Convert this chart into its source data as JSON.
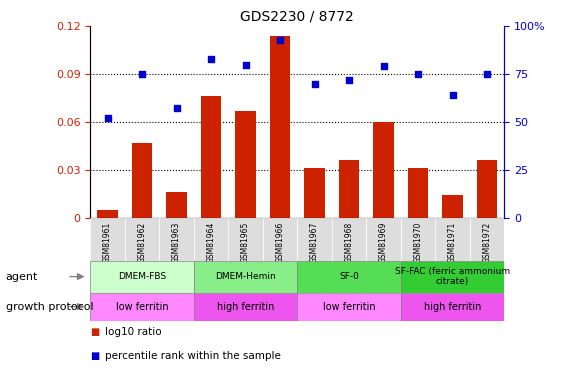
{
  "title": "GDS2230 / 8772",
  "samples": [
    "GSM81961",
    "GSM81962",
    "GSM81963",
    "GSM81964",
    "GSM81965",
    "GSM81966",
    "GSM81967",
    "GSM81968",
    "GSM81969",
    "GSM81970",
    "GSM81971",
    "GSM81972"
  ],
  "log10_ratio": [
    0.005,
    0.047,
    0.016,
    0.076,
    0.067,
    0.114,
    0.031,
    0.036,
    0.06,
    0.031,
    0.014,
    0.036
  ],
  "percentile_rank": [
    52,
    75,
    57,
    83,
    80,
    93,
    70,
    72,
    79,
    75,
    64,
    75
  ],
  "bar_color": "#cc2200",
  "dot_color": "#0000cc",
  "ylim_left": [
    0,
    0.12
  ],
  "ylim_right": [
    0,
    100
  ],
  "yticks_left": [
    0,
    0.03,
    0.06,
    0.09,
    0.12
  ],
  "yticks_right": [
    0,
    25,
    50,
    75,
    100
  ],
  "ytick_labels_left": [
    "0",
    "0.03",
    "0.06",
    "0.09",
    "0.12"
  ],
  "ytick_labels_right": [
    "0",
    "25",
    "50",
    "75",
    "100%"
  ],
  "hlines": [
    0.03,
    0.06,
    0.09
  ],
  "agent_groups": [
    {
      "label": "DMEM-FBS",
      "start": 0,
      "end": 3,
      "color": "#ccffcc"
    },
    {
      "label": "DMEM-Hemin",
      "start": 3,
      "end": 6,
      "color": "#88ee88"
    },
    {
      "label": "SF-0",
      "start": 6,
      "end": 9,
      "color": "#55dd55"
    },
    {
      "label": "SF-FAC (ferric ammonium\ncitrate)",
      "start": 9,
      "end": 12,
      "color": "#33cc33"
    }
  ],
  "growth_groups": [
    {
      "label": "low ferritin",
      "start": 0,
      "end": 3,
      "color": "#ff88ff"
    },
    {
      "label": "high ferritin",
      "start": 3,
      "end": 6,
      "color": "#ee55ee"
    },
    {
      "label": "low ferritin",
      "start": 6,
      "end": 9,
      "color": "#ff88ff"
    },
    {
      "label": "high ferritin",
      "start": 9,
      "end": 12,
      "color": "#ee55ee"
    }
  ],
  "legend_items": [
    {
      "label": "log10 ratio",
      "color": "#cc2200"
    },
    {
      "label": "percentile rank within the sample",
      "color": "#0000cc"
    }
  ],
  "agent_label": "agent",
  "growth_label": "growth protocol",
  "sample_bg": "#dddddd",
  "background_color": "#ffffff"
}
